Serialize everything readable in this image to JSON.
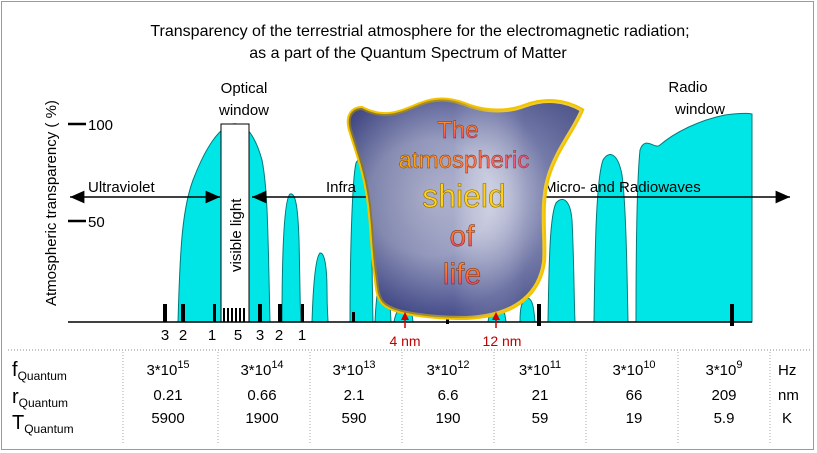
{
  "title_line1": "Transparency of the terrestrial atmosphere for the electromagnetic radiation;",
  "title_line2": "as a part of the Quantum Spectrum of Matter",
  "y_axis_label": "Atmospheric transparency  ( %)",
  "y_ticks": [
    "100",
    "50"
  ],
  "optical_window_line1": "Optical",
  "optical_window_line2": "window",
  "radio_window_line1": "Radio",
  "radio_window_line2": "window",
  "visible_light": "visible light",
  "bands": {
    "ultraviolet": "Ultraviolet",
    "infrared": "Infra",
    "micro_radio": "Micro- and Radiowaves"
  },
  "shield": {
    "line1": "The",
    "line2": "atmospheric",
    "line3": "shield",
    "line4": "of",
    "line5": "life"
  },
  "bottom_numbers": [
    "3",
    "2",
    "1",
    "5",
    "3",
    "2",
    "1"
  ],
  "markers": {
    "m1": "4 nm",
    "m2": "12 nm"
  },
  "table": {
    "row_labels": {
      "f_main": "f",
      "f_sub": "Quantum",
      "r_main": "r",
      "r_sub": "Quantum",
      "t_main": "T",
      "t_sub": "Quantum"
    },
    "f_values": [
      {
        "base": "3*10",
        "exp": "15"
      },
      {
        "base": "3*10",
        "exp": "14"
      },
      {
        "base": "3*10",
        "exp": "13"
      },
      {
        "base": "3*10",
        "exp": "12"
      },
      {
        "base": "3*10",
        "exp": "11"
      },
      {
        "base": "3*10",
        "exp": "10"
      },
      {
        "base": "3*10",
        "exp": "9"
      }
    ],
    "r_values": [
      "0.21",
      "0.66",
      "2.1",
      "6.6",
      "21",
      "66",
      "209"
    ],
    "t_values": [
      "5900",
      "1900",
      "590",
      "190",
      "59",
      "19",
      "5.9"
    ],
    "units": [
      "Hz",
      "nm",
      "K"
    ]
  },
  "colors": {
    "window_fill": "#00e6e6",
    "window_stroke": "#008888",
    "shield_border": "#f2c400",
    "shield_dark": "#1c2466",
    "marker_red": "#d40000"
  }
}
